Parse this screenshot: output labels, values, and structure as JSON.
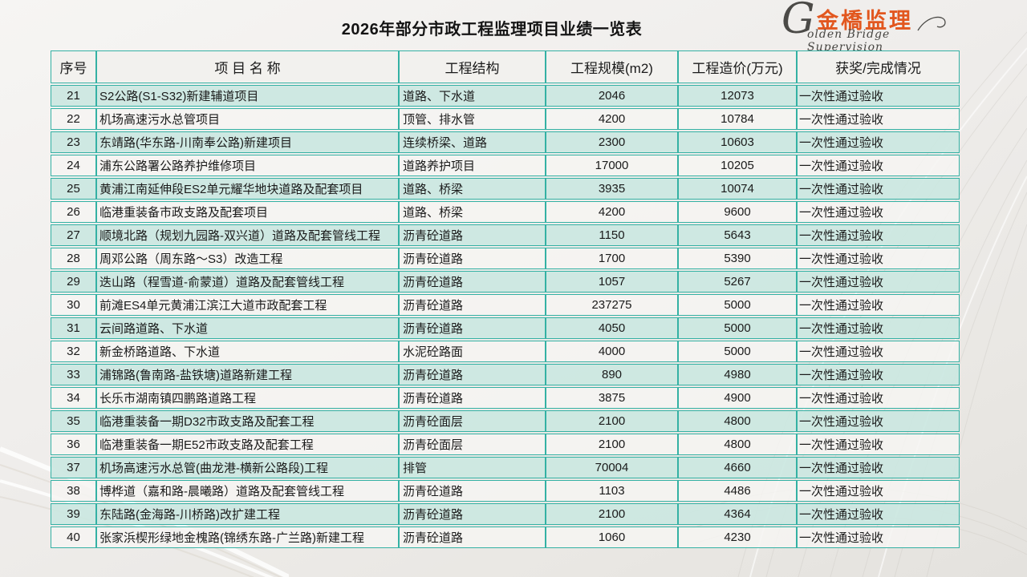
{
  "title": "2026年部分市政工程监理项目业绩一览表",
  "logo": {
    "initial": "G",
    "chinese": "金橋监理",
    "english": "olden Bridge Supervision",
    "accent_color": "#e2571f"
  },
  "colors": {
    "table_border": "#34b1a4",
    "band_row": "#cbe7e1",
    "plain_row": "#f6f5f2",
    "header_bg": "#f2f1ee",
    "title_text": "#141414"
  },
  "table": {
    "headers": [
      "序号",
      "项 目 名 称",
      "工程结构",
      "工程规模(m2)",
      "工程造价(万元)",
      "获奖/完成情况"
    ],
    "rows": [
      [
        "21",
        "S2公路(S1-S32)新建辅道项目",
        "道路、下水道",
        "2046",
        "12073",
        "一次性通过验收"
      ],
      [
        "22",
        "机场高速污水总管项目",
        "顶管、排水管",
        "4200",
        "10784",
        "一次性通过验收"
      ],
      [
        "23",
        "东靖路(华东路-川南奉公路)新建项目",
        "连续桥梁、道路",
        "2300",
        "10603",
        "一次性通过验收"
      ],
      [
        "24",
        "浦东公路署公路养护维修项目",
        "道路养护项目",
        "17000",
        "10205",
        "一次性通过验收"
      ],
      [
        "25",
        "黄浦江南延伸段ES2单元耀华地块道路及配套项目",
        "道路、桥梁",
        "3935",
        "10074",
        "一次性通过验收"
      ],
      [
        "26",
        "临港重装备市政支路及配套项目",
        "道路、桥梁",
        "4200",
        "9600",
        "一次性通过验收"
      ],
      [
        "27",
        "顺境北路（规划九园路-双兴道）道路及配套管线工程",
        "沥青砼道路",
        "1150",
        "5643",
        "一次性通过验收"
      ],
      [
        "28",
        "周邓公路（周东路～S3）改造工程",
        "沥青砼道路",
        "1700",
        "5390",
        "一次性通过验收"
      ],
      [
        "29",
        "迭山路（程雪道-俞蒙道）道路及配套管线工程",
        "沥青砼道路",
        "1057",
        "5267",
        "一次性通过验收"
      ],
      [
        "30",
        "前滩ES4单元黄浦江滨江大道市政配套工程",
        "沥青砼道路",
        "237275",
        "5000",
        "一次性通过验收"
      ],
      [
        "31",
        "云间路道路、下水道",
        "沥青砼道路",
        "4050",
        "5000",
        "一次性通过验收"
      ],
      [
        "32",
        "新金桥路道路、下水道",
        "水泥砼路面",
        "4000",
        "5000",
        "一次性通过验收"
      ],
      [
        "33",
        "浦锦路(鲁南路-盐铁塘)道路新建工程",
        "沥青砼道路",
        "890",
        "4980",
        "一次性通过验收"
      ],
      [
        "34",
        "长乐市湖南镇四鹏路道路工程",
        "沥青砼道路",
        "3875",
        "4900",
        "一次性通过验收"
      ],
      [
        "35",
        "临港重装备一期D32市政支路及配套工程",
        "沥青砼面层",
        "2100",
        "4800",
        "一次性通过验收"
      ],
      [
        "36",
        "临港重装备一期E52市政支路及配套工程",
        "沥青砼面层",
        "2100",
        "4800",
        "一次性通过验收"
      ],
      [
        "37",
        "机场高速污水总管(曲龙港-横新公路段)工程",
        "排管",
        "70004",
        "4660",
        "一次性通过验收"
      ],
      [
        "38",
        "博桦道（嘉和路-晨曦路）道路及配套管线工程",
        "沥青砼道路",
        "1103",
        "4486",
        "一次性通过验收"
      ],
      [
        "39",
        "东陆路(金海路-川桥路)改扩建工程",
        "沥青砼道路",
        "2100",
        "4364",
        "一次性通过验收"
      ],
      [
        "40",
        "张家浜楔形绿地金槐路(锦绣东路-广兰路)新建工程",
        "沥青砼道路",
        "1060",
        "4230",
        "一次性通过验收"
      ]
    ]
  }
}
